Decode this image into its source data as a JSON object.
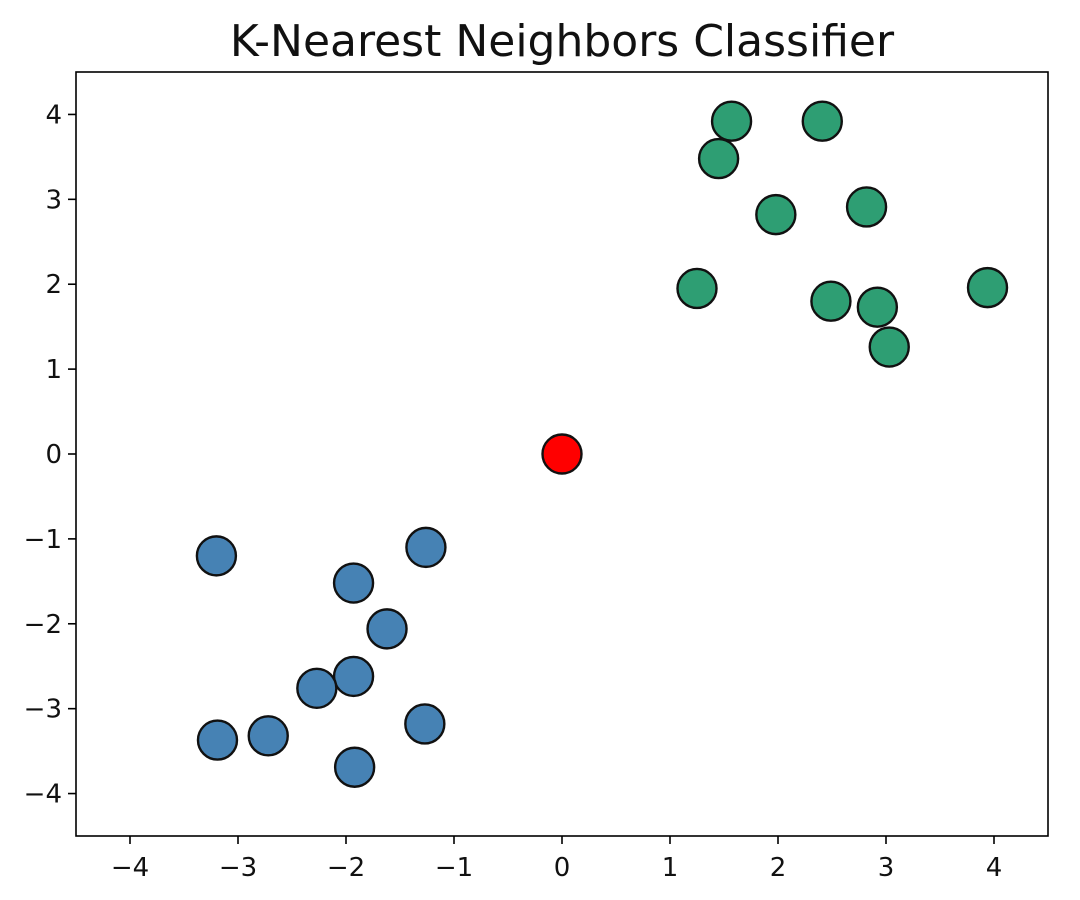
{
  "chart_data": {
    "type": "scatter",
    "title": "K-Nearest Neighbors Classifier",
    "xlabel": "",
    "ylabel": "",
    "xlim": [
      -4.5,
      4.5
    ],
    "ylim": [
      -4.5,
      4.5
    ],
    "grid": false,
    "x_ticks": [
      -4,
      -3,
      -2,
      -1,
      0,
      1,
      2,
      3,
      4
    ],
    "y_ticks": [
      -4,
      -3,
      -2,
      -1,
      0,
      1,
      2,
      3,
      4
    ],
    "series": [
      {
        "color": "#4682b4",
        "points": [
          {
            "x": -3.2,
            "y": -1.2
          },
          {
            "x": -1.26,
            "y": -1.1
          },
          {
            "x": -1.93,
            "y": -1.52
          },
          {
            "x": -1.62,
            "y": -2.06
          },
          {
            "x": -1.93,
            "y": -2.62
          },
          {
            "x": -2.27,
            "y": -2.76
          },
          {
            "x": -2.72,
            "y": -3.32
          },
          {
            "x": -3.19,
            "y": -3.37
          },
          {
            "x": -1.27,
            "y": -3.18
          },
          {
            "x": -1.92,
            "y": -3.69
          }
        ]
      },
      {
        "color": "#2e9e73",
        "points": [
          {
            "x": 1.57,
            "y": 3.92
          },
          {
            "x": 2.41,
            "y": 3.92
          },
          {
            "x": 1.45,
            "y": 3.48
          },
          {
            "x": 1.98,
            "y": 2.82
          },
          {
            "x": 2.82,
            "y": 2.91
          },
          {
            "x": 1.25,
            "y": 1.95
          },
          {
            "x": 3.94,
            "y": 1.96
          },
          {
            "x": 2.49,
            "y": 1.8
          },
          {
            "x": 2.92,
            "y": 1.73
          },
          {
            "x": 3.03,
            "y": 1.26
          }
        ]
      },
      {
        "color": "#ff0000",
        "points": [
          {
            "x": 0,
            "y": 0
          }
        ]
      }
    ]
  }
}
